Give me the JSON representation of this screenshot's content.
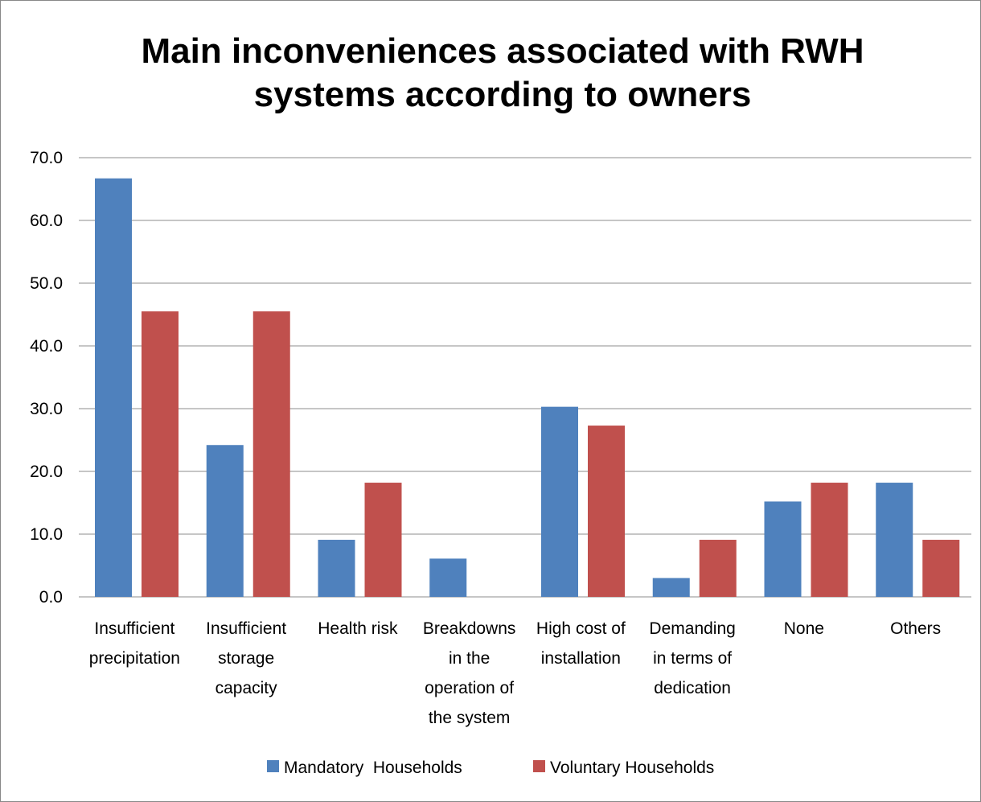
{
  "chart_data": {
    "type": "bar",
    "title": "Main inconveniences associated with RWH systems according to owners",
    "categories": [
      "Insufficient precipitation",
      "Insufficient storage capacity",
      "Health risk",
      "Breakdowns in the operation of the system",
      "High cost of installation",
      "Demanding in terms of dedication",
      "None",
      "Others"
    ],
    "series": [
      {
        "name": "Mandatory  Households",
        "color": "#4f81bd",
        "values": [
          66.7,
          24.2,
          9.1,
          6.1,
          30.3,
          3.0,
          15.2,
          18.2
        ]
      },
      {
        "name": "Voluntary Households",
        "color": "#c0504d",
        "values": [
          45.5,
          45.5,
          18.2,
          0,
          27.3,
          9.1,
          18.2,
          9.1
        ]
      }
    ],
    "ylim": [
      0,
      70
    ],
    "yticks": [
      {
        "value": 0,
        "label": "0.0"
      },
      {
        "value": 10,
        "label": "10.0"
      },
      {
        "value": 20,
        "label": "20.0"
      },
      {
        "value": 30,
        "label": "30.0"
      },
      {
        "value": 40,
        "label": "40.0"
      },
      {
        "value": 50,
        "label": "50.0"
      },
      {
        "value": 60,
        "label": "60.0"
      },
      {
        "value": 70,
        "label": "70.0"
      }
    ],
    "grid": true,
    "legend": "bottom"
  }
}
